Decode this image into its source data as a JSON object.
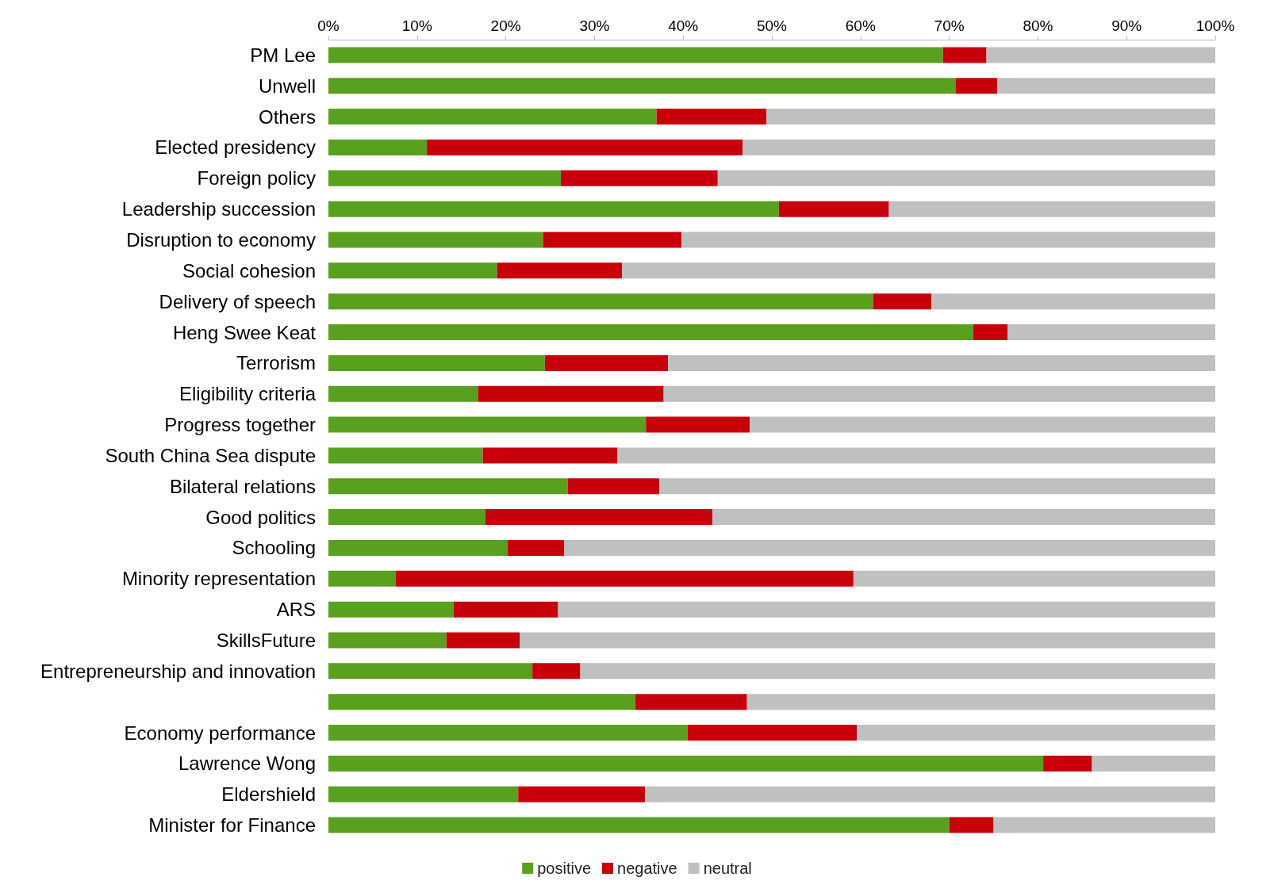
{
  "chart_data": {
    "type": "bar",
    "orientation": "horizontal",
    "stacked": true,
    "categories": [
      "PM Lee",
      "Unwell",
      "Others",
      "Elected presidency",
      "Foreign policy",
      "Leadership succession",
      "Disruption to economy",
      "Social cohesion",
      "Delivery of speech",
      "Heng Swee Keat",
      "Terrorism",
      "Eligibility criteria",
      "Progress together",
      "South China Sea dispute",
      "Bilateral relations",
      "Good politics",
      "Schooling",
      "Minority representation",
      "ARS",
      "SkillsFuture",
      "Entrepreneurship and innovation",
      null,
      "Economy performance",
      "Lawrence Wong",
      "Eldershield",
      "Minister for Finance"
    ],
    "series": [
      {
        "name": "positive",
        "color": "#59a01e",
        "values": [
          69.3,
          70.7,
          37.0,
          11.1,
          26.2,
          50.8,
          24.2,
          19.0,
          61.4,
          72.7,
          24.4,
          16.9,
          35.8,
          17.4,
          27.0,
          17.7,
          20.2,
          7.6,
          14.1,
          13.3,
          23.0,
          34.6,
          40.5,
          80.6,
          21.4,
          70.0
        ]
      },
      {
        "name": "negative",
        "color": "#c8000b",
        "values": [
          4.9,
          4.7,
          12.4,
          35.6,
          17.7,
          12.4,
          15.6,
          14.1,
          6.6,
          3.9,
          13.9,
          20.9,
          11.7,
          15.2,
          10.3,
          25.6,
          6.4,
          51.6,
          11.8,
          8.3,
          5.4,
          12.6,
          19.1,
          5.5,
          14.3,
          5.0
        ]
      },
      {
        "name": "neutral",
        "color": "#c0c0c0",
        "values": [
          25.8,
          24.6,
          50.6,
          53.3,
          56.1,
          36.8,
          60.2,
          66.9,
          32.0,
          23.4,
          61.7,
          62.2,
          52.5,
          67.4,
          62.7,
          56.7,
          73.4,
          40.8,
          74.1,
          78.4,
          71.6,
          52.8,
          40.4,
          13.9,
          64.3,
          25.0
        ]
      }
    ],
    "xlim": [
      0,
      100
    ],
    "xticks": [
      {
        "value": 0,
        "label": "0%"
      },
      {
        "value": 10,
        "label": "10%"
      },
      {
        "value": 20,
        "label": "20%"
      },
      {
        "value": 30,
        "label": "30%"
      },
      {
        "value": 40,
        "label": "40%"
      },
      {
        "value": 50,
        "label": "50%"
      },
      {
        "value": 60,
        "label": "60%"
      },
      {
        "value": 70,
        "label": "70%"
      },
      {
        "value": 80,
        "label": "80%"
      },
      {
        "value": 90,
        "label": "90%"
      },
      {
        "value": 100,
        "label": "100%"
      }
    ],
    "grid": false,
    "legend": "bottom"
  }
}
